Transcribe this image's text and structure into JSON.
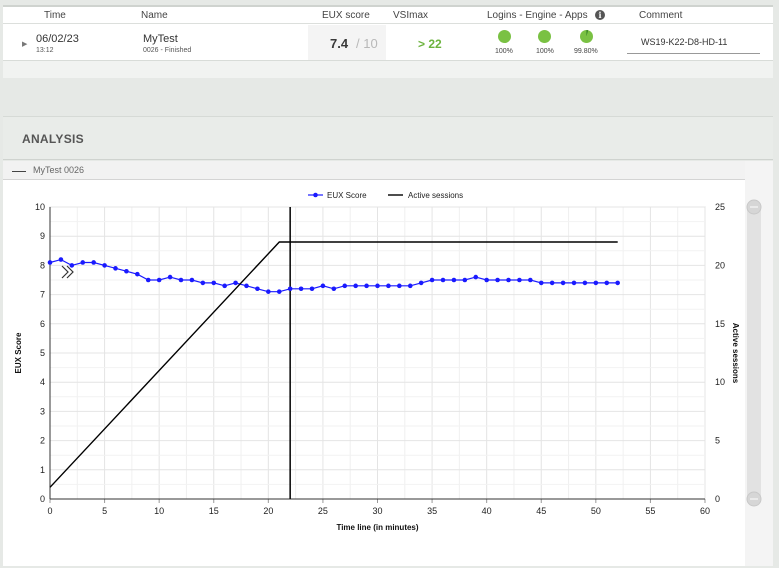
{
  "table": {
    "headers": {
      "time": "Time",
      "name": "Name",
      "eux": "EUX score",
      "vsimax": "VSImax",
      "lea": "Logins - Engine - Apps",
      "comment": "Comment"
    },
    "row": {
      "date": "06/02/23",
      "time": "13:12",
      "name": "MyTest",
      "status": "0026 - Finished",
      "eux_score": "7.4",
      "eux_max": "/ 10",
      "vsimax": "> 22",
      "logins": "100%",
      "engine": "100%",
      "apps": "99.80%",
      "comment": "WS19-K22-D8-HD-11"
    },
    "colors": {
      "ok": "#7ac143",
      "vsimax": "#6cb33e"
    }
  },
  "analysis": {
    "title": "ANALYSIS",
    "test_label": "MyTest 0026"
  },
  "chart_data": {
    "type": "line",
    "legend": [
      "EUX Score",
      "Active sessions"
    ],
    "legend_position": "top-center",
    "grid": true,
    "xlabel": "Time line (in minutes)",
    "ylabel_left": "EUX Score",
    "ylabel_right": "Active sessions",
    "xlim": [
      0,
      60
    ],
    "ylim_left": [
      0,
      10
    ],
    "ylim_right": [
      0,
      25
    ],
    "x_ticks": [
      0,
      5,
      10,
      15,
      20,
      25,
      30,
      35,
      40,
      45,
      50,
      55,
      60
    ],
    "y_ticks_left": [
      0,
      1,
      2,
      3,
      4,
      5,
      6,
      7,
      8,
      9,
      10
    ],
    "y_ticks_right": [
      0,
      5,
      10,
      15,
      20,
      25
    ],
    "marker_x": 22,
    "series": [
      {
        "name": "EUX Score",
        "axis": "left",
        "color": "#1a1aff",
        "x": [
          0,
          1,
          2,
          3,
          4,
          5,
          6,
          7,
          8,
          9,
          10,
          11,
          12,
          13,
          14,
          15,
          16,
          17,
          18,
          19,
          20,
          21,
          22,
          23,
          24,
          25,
          26,
          27,
          28,
          29,
          30,
          31,
          32,
          33,
          34,
          35,
          36,
          37,
          38,
          39,
          40,
          41,
          42,
          43,
          44,
          45,
          46,
          47,
          48,
          49,
          50,
          51,
          52
        ],
        "y": [
          8.1,
          8.2,
          8.0,
          8.1,
          8.1,
          8.0,
          7.9,
          7.8,
          7.7,
          7.5,
          7.5,
          7.6,
          7.5,
          7.5,
          7.4,
          7.4,
          7.3,
          7.4,
          7.3,
          7.2,
          7.1,
          7.1,
          7.2,
          7.2,
          7.2,
          7.3,
          7.2,
          7.3,
          7.3,
          7.3,
          7.3,
          7.3,
          7.3,
          7.3,
          7.4,
          7.5,
          7.5,
          7.5,
          7.5,
          7.6,
          7.5,
          7.5,
          7.5,
          7.5,
          7.5,
          7.4,
          7.4,
          7.4,
          7.4,
          7.4,
          7.4,
          7.4,
          7.4
        ]
      },
      {
        "name": "Active sessions",
        "axis": "right",
        "color": "#000000",
        "x": [
          0,
          21,
          22,
          52
        ],
        "y": [
          1,
          22,
          22,
          22
        ]
      }
    ]
  }
}
